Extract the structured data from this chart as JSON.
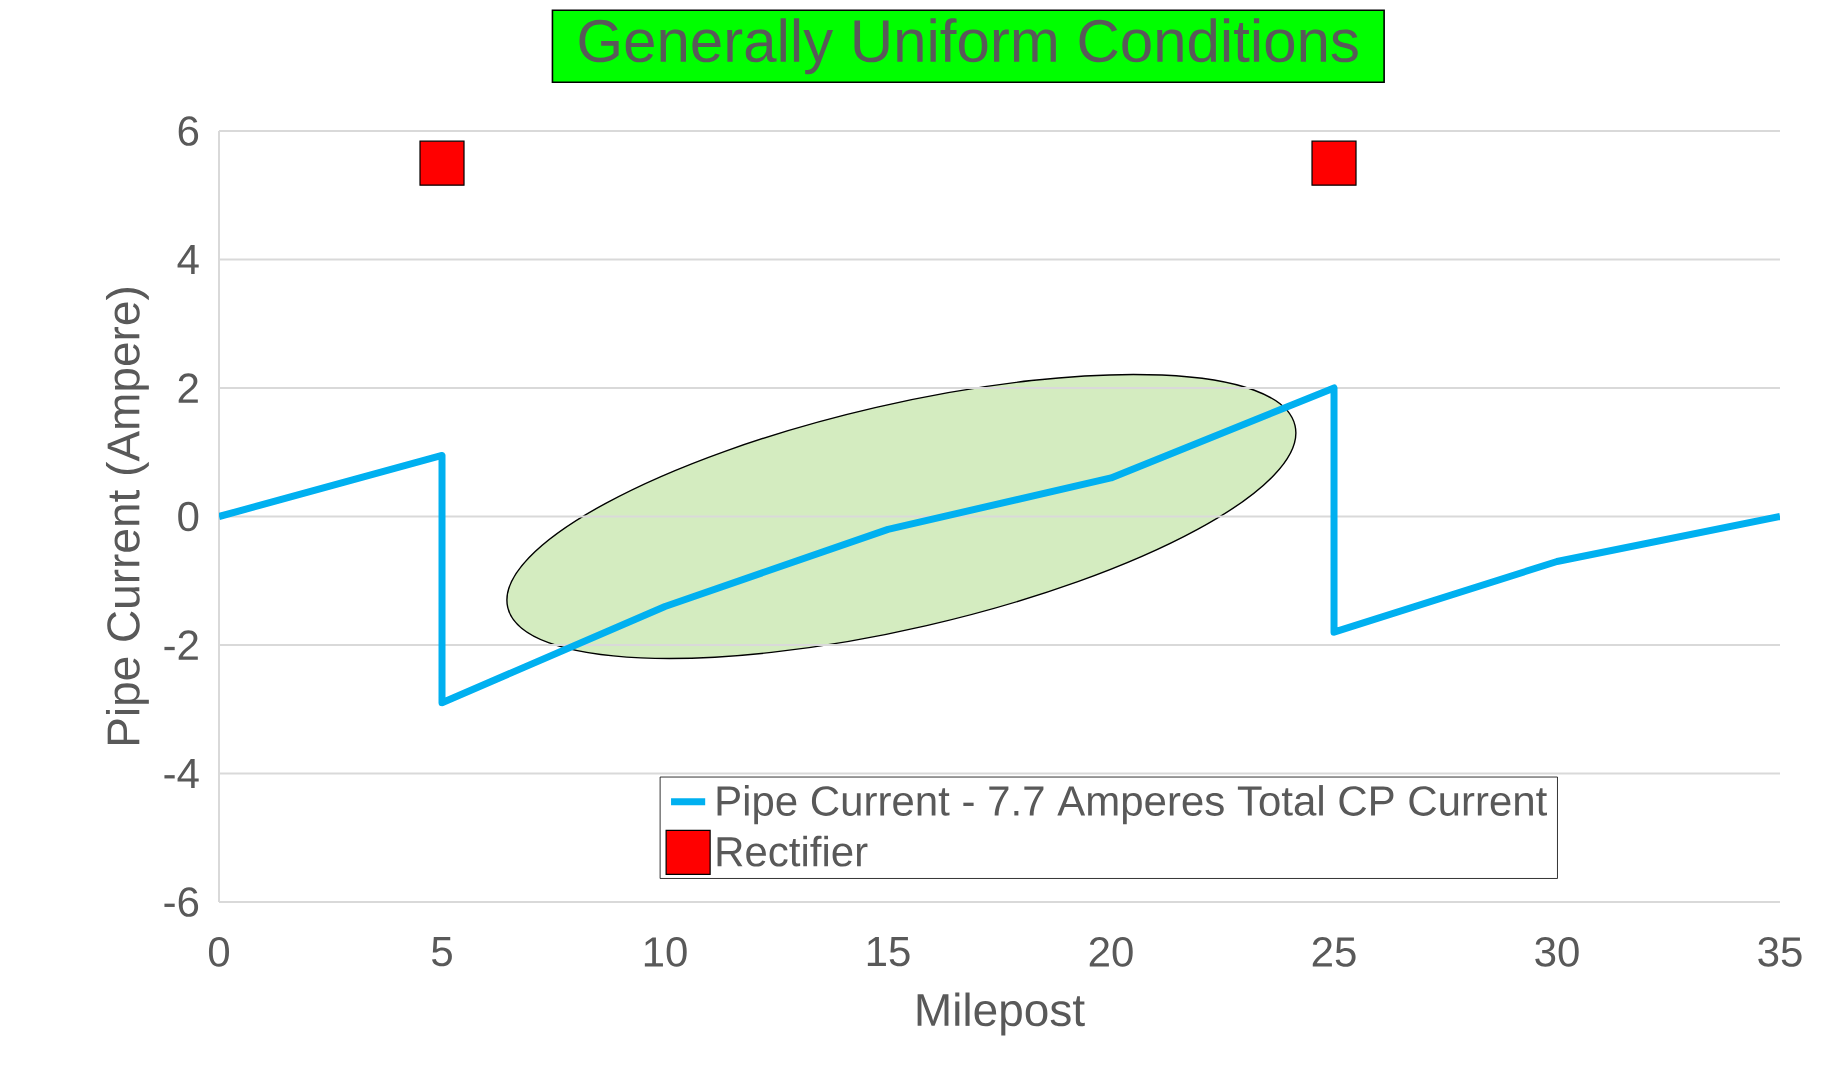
{
  "chart_data": {
    "type": "line",
    "title": "Generally Uniform Conditions",
    "xlabel": "Milepost",
    "ylabel": "Pipe Current (Ampere)",
    "series": [
      {
        "name": "Pipe Current - 7.7 Amperes Total CP Current",
        "type": "line",
        "color": "#00b0f0",
        "marker": "none",
        "x": [
          0,
          5,
          5,
          10,
          15,
          20,
          25,
          25,
          30,
          35
        ],
        "values": [
          0,
          0.95,
          -2.9,
          -1.4,
          -0.2,
          0.6,
          2.0,
          -1.8,
          -0.7,
          0
        ]
      },
      {
        "name": "Rectifier",
        "type": "scatter",
        "color": "#ff0000",
        "marker": "square",
        "x": [
          5,
          25
        ],
        "values": [
          5.5,
          5.5
        ]
      }
    ],
    "xlim": [
      0,
      35
    ],
    "xticks": [
      0,
      5,
      10,
      15,
      20,
      25,
      30,
      35
    ],
    "ylim": [
      -6,
      6
    ],
    "yticks": [
      -6,
      -4,
      -2,
      0,
      2,
      4,
      6
    ],
    "grid": "y",
    "legend": "bottom"
  }
}
